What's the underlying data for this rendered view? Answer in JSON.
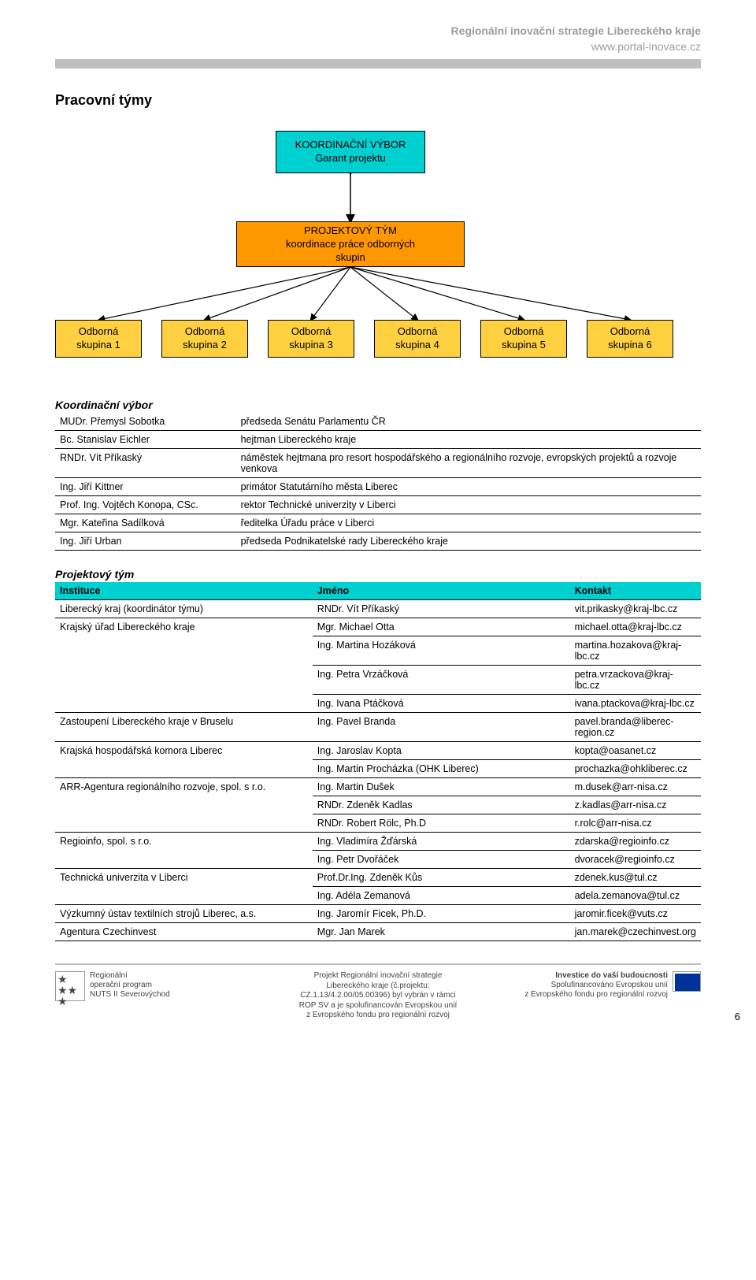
{
  "header": {
    "title": "Regionální inovační strategie Libereckého kraje",
    "url": "www.portal-inovace.cz"
  },
  "section_title": "Pracovní týmy",
  "chart": {
    "colors": {
      "top_bg": "#00d0d0",
      "mid_bg": "#ff9800",
      "leaf_bg": "#ffd040",
      "border": "#000000"
    },
    "nodes": {
      "top": {
        "line1": "KOORDINAČNÍ VÝBOR",
        "line2": "Garant projektu"
      },
      "mid": {
        "line1": "PROJEKTOVÝ TÝM",
        "line2": "koordinace práce odborných",
        "line3": "skupin"
      },
      "leaves": [
        {
          "line1": "Odborná",
          "line2": "skupina 1"
        },
        {
          "line1": "Odborná",
          "line2": "skupina 2"
        },
        {
          "line1": "Odborná",
          "line2": "skupina 3"
        },
        {
          "line1": "Odborná",
          "line2": "skupina 4"
        },
        {
          "line1": "Odborná",
          "line2": "skupina 5"
        },
        {
          "line1": "Odborná",
          "line2": "skupina 6"
        }
      ]
    }
  },
  "vybor": {
    "title": "Koordinační výbor",
    "rows": [
      {
        "name": "MUDr. Přemysl Sobotka",
        "role": "předseda Senátu Parlamentu ČR"
      },
      {
        "name": "Bc. Stanislav Eichler",
        "role": "hejtman Libereckého kraje"
      },
      {
        "name": "RNDr. Vít Příkaský",
        "role": "náměstek hejtmana pro resort hospodářského a regionálního rozvoje, evropských projektů a rozvoje venkova"
      },
      {
        "name": "Ing. Jiří Kittner",
        "role": "primátor Statutárního města Liberec"
      },
      {
        "name": "Prof. Ing. Vojtěch Konopa, CSc.",
        "role": "rektor Technické univerzity v Liberci"
      },
      {
        "name": "Mgr. Kateřina Sadílková",
        "role": "ředitelka Úřadu práce v Liberci"
      },
      {
        "name": "Ing. Jiří Urban",
        "role": "předseda Podnikatelské rady Libereckého kraje"
      }
    ]
  },
  "team": {
    "title": "Projektový tým",
    "cols": {
      "c1": "Instituce",
      "c2": "Jméno",
      "c3": "Kontakt"
    },
    "rows": [
      {
        "inst": "Liberecký kraj (koordinátor týmu)",
        "name": "RNDr. Vít Příkaský",
        "mail": "vit.prikasky@kraj-lbc.cz",
        "rowspan": 1
      },
      {
        "inst": "Krajský úřad Libereckého kraje",
        "name": "Mgr. Michael Otta",
        "mail": "michael.otta@kraj-lbc.cz",
        "rowspan": 4
      },
      {
        "name": "Ing. Martina Hozáková",
        "mail": "martina.hozakova@kraj-lbc.cz"
      },
      {
        "name": "Ing. Petra Vrzáčková",
        "mail": "petra.vrzackova@kraj-lbc.cz"
      },
      {
        "name": "Ing. Ivana Ptáčková",
        "mail": "ivana.ptackova@kraj-lbc.cz"
      },
      {
        "inst": "Zastoupení Libereckého kraje v Bruselu",
        "name": "Ing. Pavel Branda",
        "mail": "pavel.branda@liberec-region.cz",
        "rowspan": 1
      },
      {
        "inst": "Krajská hospodářská komora Liberec",
        "name": "Ing. Jaroslav Kopta",
        "mail": "kopta@oasanet.cz",
        "rowspan": 2
      },
      {
        "name": "Ing. Martin Procházka (OHK Liberec)",
        "mail": "prochazka@ohkliberec.cz"
      },
      {
        "inst": "ARR-Agentura regionálního rozvoje, spol. s r.o.",
        "name": "Ing. Martin Dušek",
        "mail": "m.dusek@arr-nisa.cz",
        "rowspan": 3
      },
      {
        "name": "RNDr. Zdeněk Kadlas",
        "mail": "z.kadlas@arr-nisa.cz"
      },
      {
        "name": "RNDr. Robert Rölc, Ph.D",
        "mail": "r.rolc@arr-nisa.cz"
      },
      {
        "inst": "Regioinfo, spol. s r.o.",
        "name": "Ing. Vladimíra Žďárská",
        "mail": "zdarska@regioinfo.cz",
        "rowspan": 2
      },
      {
        "name": "Ing. Petr Dvořáček",
        "mail": "dvoracek@regioinfo.cz"
      },
      {
        "inst": "Technická univerzita v Liberci",
        "name": "Prof.Dr.Ing. Zdeněk Kůs",
        "mail": "zdenek.kus@tul.cz",
        "rowspan": 2
      },
      {
        "name": "Ing. Adéla Zemanová",
        "mail": "adela.zemanova@tul.cz"
      },
      {
        "inst": "Výzkumný ústav textilních strojů Liberec, a.s.",
        "name": "Ing. Jaromír Ficek, Ph.D.",
        "mail": "jaromir.ficek@vuts.cz",
        "rowspan": 1
      },
      {
        "inst": "Agentura Czechinvest",
        "name": "Mgr. Jan Marek",
        "mail": "jan.marek@czechinvest.org",
        "rowspan": 1
      }
    ]
  },
  "footer": {
    "left": {
      "l1": "Regionální",
      "l2": "operační program",
      "l3": "NUTS II Severovýchod"
    },
    "mid": {
      "l1": "Projekt Regionální inovační strategie",
      "l2": "Libereckého kraje (č.projektu:",
      "l3": "CZ.1.13/4.2.00/05.00396) byl vybrán v rámci",
      "l4": "ROP SV a je spolufinancován Evropskou unií",
      "l5": "z Evropského fondu pro regionální rozvoj"
    },
    "right": {
      "l1": "Investice do vaší budoucnosti",
      "l2": "Spolufinancováno Evropskou unií",
      "l3": "z Evropského fondu pro regionální rozvoj"
    },
    "page": "6"
  }
}
